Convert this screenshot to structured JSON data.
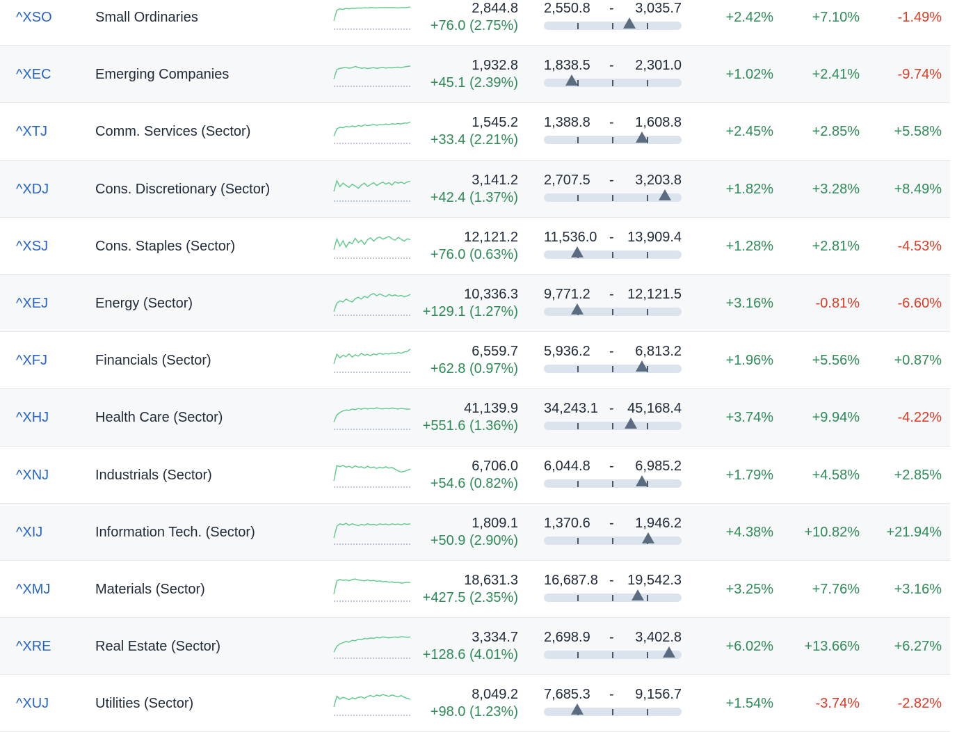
{
  "rows": [
    {
      "symbol": "^XSO",
      "name": "Small Ordinaries",
      "price": "2,844.8",
      "change": "+76.0 (2.75%)",
      "range_low": "2,550.8",
      "range_high": "3,035.7",
      "range_position": 0.62,
      "p1": "+2.42%",
      "p2": "+7.10%",
      "p3": "-1.49%",
      "spark": [
        0.3,
        0.75,
        0.8,
        0.78,
        0.82,
        0.8,
        0.83,
        0.82,
        0.84,
        0.83,
        0.85,
        0.84,
        0.86,
        0.85,
        0.84,
        0.86,
        0.85,
        0.86,
        0.85,
        0.86,
        0.85,
        0.84,
        0.86,
        0.85,
        0.86,
        0.88
      ]
    },
    {
      "symbol": "^XEC",
      "name": "Emerging Companies",
      "price": "1,932.8",
      "change": "+45.1 (2.39%)",
      "range_low": "1,838.5",
      "range_high": "2,301.0",
      "range_position": 0.2,
      "p1": "+1.02%",
      "p2": "+2.41%",
      "p3": "-9.74%",
      "spark": [
        0.25,
        0.65,
        0.7,
        0.72,
        0.74,
        0.7,
        0.73,
        0.78,
        0.74,
        0.7,
        0.72,
        0.69,
        0.71,
        0.73,
        0.7,
        0.72,
        0.74,
        0.71,
        0.73,
        0.72,
        0.74,
        0.75,
        0.73,
        0.76,
        0.78,
        0.8
      ]
    },
    {
      "symbol": "^XTJ",
      "name": "Comm. Services (Sector)",
      "price": "1,545.2",
      "change": "+33.4 (2.21%)",
      "range_low": "1,388.8",
      "range_high": "1,608.8",
      "range_position": 0.71,
      "p1": "+2.45%",
      "p2": "+2.85%",
      "p3": "+5.58%",
      "spark": [
        0.25,
        0.55,
        0.62,
        0.6,
        0.66,
        0.63,
        0.68,
        0.64,
        0.7,
        0.66,
        0.72,
        0.69,
        0.71,
        0.74,
        0.7,
        0.73,
        0.72,
        0.76,
        0.73,
        0.77,
        0.75,
        0.78,
        0.76,
        0.8,
        0.79,
        0.84
      ]
    },
    {
      "symbol": "^XDJ",
      "name": "Cons. Discretionary (Sector)",
      "price": "3,141.2",
      "change": "+42.4 (1.37%)",
      "range_low": "2,707.5",
      "range_high": "3,203.8",
      "range_position": 0.88,
      "p1": "+1.82%",
      "p2": "+3.28%",
      "p3": "+8.49%",
      "spark": [
        0.35,
        0.8,
        0.55,
        0.7,
        0.6,
        0.52,
        0.66,
        0.58,
        0.48,
        0.62,
        0.7,
        0.56,
        0.64,
        0.72,
        0.6,
        0.68,
        0.74,
        0.66,
        0.72,
        0.62,
        0.76,
        0.7,
        0.74,
        0.68,
        0.75,
        0.78
      ]
    },
    {
      "symbol": "^XSJ",
      "name": "Cons. Staples (Sector)",
      "price": "12,121.2",
      "change": "+76.0 (0.63%)",
      "range_low": "11,536.0",
      "range_high": "13,909.4",
      "range_position": 0.24,
      "p1": "+1.28%",
      "p2": "+2.81%",
      "p3": "-4.53%",
      "spark": [
        0.3,
        0.75,
        0.45,
        0.68,
        0.4,
        0.62,
        0.55,
        0.78,
        0.6,
        0.7,
        0.52,
        0.72,
        0.8,
        0.66,
        0.78,
        0.84,
        0.74,
        0.8,
        0.86,
        0.76,
        0.7,
        0.82,
        0.74,
        0.66,
        0.76,
        0.72
      ]
    },
    {
      "symbol": "^XEJ",
      "name": "Energy (Sector)",
      "price": "10,336.3",
      "change": "+129.1 (1.27%)",
      "range_low": "9,771.2",
      "range_high": "12,121.5",
      "range_position": 0.24,
      "p1": "+3.16%",
      "p2": "-0.81%",
      "p3": "-6.60%",
      "spark": [
        0.1,
        0.45,
        0.55,
        0.5,
        0.62,
        0.55,
        0.5,
        0.64,
        0.7,
        0.62,
        0.74,
        0.68,
        0.8,
        0.86,
        0.76,
        0.84,
        0.78,
        0.72,
        0.82,
        0.76,
        0.8,
        0.74,
        0.78,
        0.72,
        0.76,
        0.82
      ]
    },
    {
      "symbol": "^XFJ",
      "name": "Financials (Sector)",
      "price": "6,559.7",
      "change": "+62.8 (0.97%)",
      "range_low": "5,936.2",
      "range_high": "6,813.2",
      "range_position": 0.71,
      "p1": "+1.96%",
      "p2": "+5.56%",
      "p3": "+0.87%",
      "spark": [
        0.3,
        0.7,
        0.55,
        0.66,
        0.6,
        0.72,
        0.58,
        0.68,
        0.62,
        0.74,
        0.66,
        0.7,
        0.64,
        0.72,
        0.68,
        0.75,
        0.7,
        0.73,
        0.71,
        0.76,
        0.72,
        0.78,
        0.74,
        0.8,
        0.82,
        0.92
      ]
    },
    {
      "symbol": "^XHJ",
      "name": "Health Care (Sector)",
      "price": "41,139.9",
      "change": "+551.6 (1.36%)",
      "range_low": "34,243.1",
      "range_high": "45,168.4",
      "range_position": 0.63,
      "p1": "+3.74%",
      "p2": "+9.94%",
      "p3": "-4.22%",
      "spark": [
        0.25,
        0.55,
        0.65,
        0.72,
        0.76,
        0.74,
        0.8,
        0.77,
        0.82,
        0.79,
        0.84,
        0.8,
        0.83,
        0.81,
        0.85,
        0.82,
        0.8,
        0.83,
        0.81,
        0.84,
        0.82,
        0.8,
        0.83,
        0.81,
        0.79,
        0.8
      ]
    },
    {
      "symbol": "^XNJ",
      "name": "Industrials (Sector)",
      "price": "6,706.0",
      "change": "+54.6 (0.82%)",
      "range_low": "6,044.8",
      "range_high": "6,985.2",
      "range_position": 0.71,
      "p1": "+1.79%",
      "p2": "+4.58%",
      "p3": "+2.85%",
      "spark": [
        0.2,
        0.85,
        0.8,
        0.86,
        0.78,
        0.82,
        0.76,
        0.84,
        0.78,
        0.8,
        0.74,
        0.82,
        0.76,
        0.79,
        0.73,
        0.78,
        0.75,
        0.8,
        0.74,
        0.77,
        0.7,
        0.62,
        0.58,
        0.6,
        0.65,
        0.7
      ]
    },
    {
      "symbol": "^XIJ",
      "name": "Information Tech. (Sector)",
      "price": "1,809.1",
      "change": "+50.9 (2.90%)",
      "range_low": "1,370.6",
      "range_high": "1,946.2",
      "range_position": 0.76,
      "p1": "+4.38%",
      "p2": "+10.82%",
      "p3": "+21.94%",
      "spark": [
        0.2,
        0.7,
        0.8,
        0.76,
        0.82,
        0.74,
        0.8,
        0.76,
        0.72,
        0.78,
        0.74,
        0.8,
        0.76,
        0.78,
        0.74,
        0.8,
        0.77,
        0.79,
        0.75,
        0.8,
        0.77,
        0.79,
        0.76,
        0.8,
        0.78,
        0.8
      ]
    },
    {
      "symbol": "^XMJ",
      "name": "Materials (Sector)",
      "price": "18,631.3",
      "change": "+427.5 (2.35%)",
      "range_low": "16,687.8",
      "range_high": "19,542.3",
      "range_position": 0.68,
      "p1": "+3.25%",
      "p2": "+7.76%",
      "p3": "+3.16%",
      "spark": [
        0.25,
        0.8,
        0.86,
        0.82,
        0.84,
        0.8,
        0.86,
        0.88,
        0.84,
        0.82,
        0.8,
        0.84,
        0.8,
        0.82,
        0.78,
        0.8,
        0.76,
        0.78,
        0.74,
        0.76,
        0.72,
        0.74,
        0.7,
        0.72,
        0.74,
        0.73
      ]
    },
    {
      "symbol": "^XRE",
      "name": "Real Estate (Sector)",
      "price": "3,334.7",
      "change": "+128.6 (4.01%)",
      "range_low": "2,698.9",
      "range_high": "3,402.8",
      "range_position": 0.91,
      "p1": "+6.02%",
      "p2": "+13.66%",
      "p3": "+6.27%",
      "spark": [
        0.2,
        0.45,
        0.55,
        0.6,
        0.65,
        0.62,
        0.7,
        0.68,
        0.74,
        0.72,
        0.78,
        0.76,
        0.8,
        0.78,
        0.82,
        0.8,
        0.84,
        0.82,
        0.8,
        0.82,
        0.84,
        0.82,
        0.86,
        0.84,
        0.82,
        0.84
      ]
    },
    {
      "symbol": "^XUJ",
      "name": "Utilities (Sector)",
      "price": "8,049.2",
      "change": "+98.0 (1.23%)",
      "range_low": "7,685.3",
      "range_high": "9,156.7",
      "range_position": 0.24,
      "p1": "+1.54%",
      "p2": "-3.74%",
      "p3": "-2.82%",
      "spark": [
        0.3,
        0.75,
        0.62,
        0.7,
        0.66,
        0.6,
        0.68,
        0.64,
        0.7,
        0.72,
        0.66,
        0.74,
        0.78,
        0.72,
        0.8,
        0.76,
        0.82,
        0.78,
        0.74,
        0.8,
        0.76,
        0.72,
        0.78,
        0.7,
        0.66,
        0.62
      ]
    }
  ],
  "colors": {
    "symbol": "#2563c9",
    "positive": "#2e8b57",
    "negative": "#dc3b26",
    "sparkline": "#5cc98a",
    "range_bar": "#dbe3ec",
    "range_marker": "#5b6b80"
  }
}
